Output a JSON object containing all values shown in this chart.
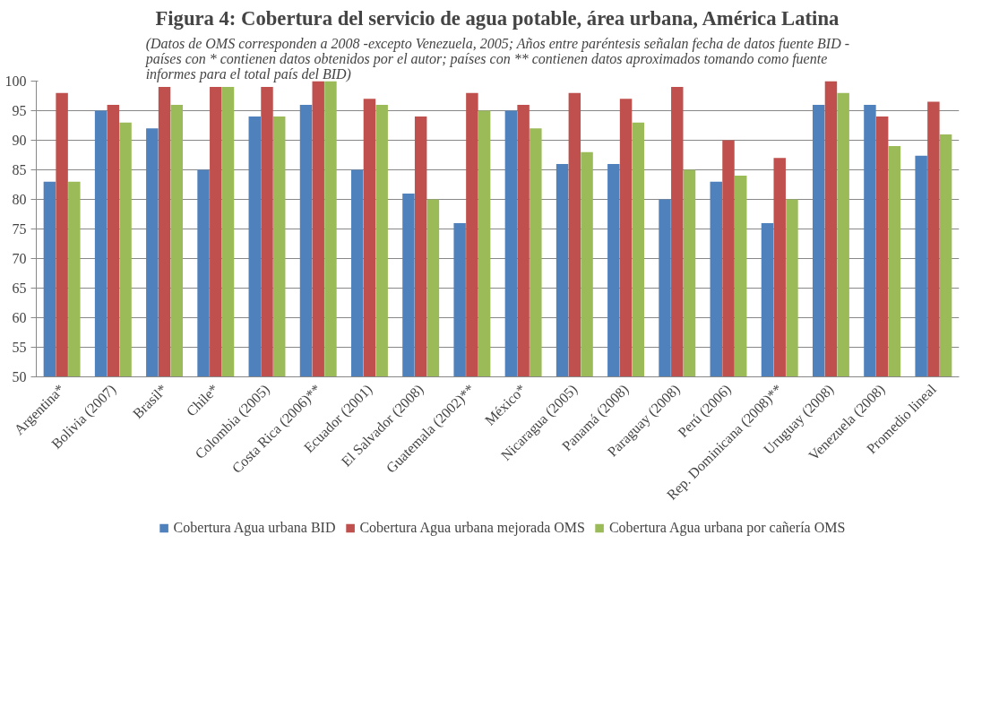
{
  "chart_data": {
    "type": "bar",
    "title": "Figura 4: Cobertura del servicio de agua potable, área urbana, América Latina",
    "subtitle": "(Datos de OMS corresponden a 2008 -excepto Venezuela, 2005; Años entre paréntesis señalan fecha de datos fuente BID - países con * contienen datos obtenidos por el autor; países con ** contienen datos aproximados tomando como fuente informes para el total país del BID)",
    "categories": [
      "Argentina*",
      "Bolivia (2007)",
      "Brasil*",
      "Chile*",
      "Colombia (2005)",
      "Costa Rica (2006)**",
      "Ecuador (2001)",
      "El Salvador (2008)",
      "Guatemala (2002)**",
      "México*",
      "Nicaragua (2005)",
      "Panamá (2008)",
      "Paraguay (2008)",
      "Perú (2006)",
      "Rep. Dominicana (2008)**",
      "Uruguay (2008)",
      "Venezuela (2008)",
      "Promedio lineal"
    ],
    "series": [
      {
        "name": "Cobertura Agua urbana BID",
        "color": "#4f81bd",
        "values": [
          83,
          95,
          92,
          85,
          94,
          96,
          85,
          81,
          76,
          95,
          86,
          86,
          80,
          83,
          76,
          96,
          96,
          87.4
        ]
      },
      {
        "name": "Cobertura Agua urbana mejorada OMS",
        "color": "#c0504d",
        "values": [
          98,
          96,
          99,
          99,
          99,
          100,
          97,
          94,
          98,
          96,
          98,
          97,
          99,
          90,
          87,
          100,
          94,
          96.5
        ]
      },
      {
        "name": "Cobertura Agua urbana por cañería OMS",
        "color": "#9bbb59",
        "values": [
          83,
          93,
          96,
          99,
          94,
          100,
          96,
          80,
          95,
          92,
          88,
          93,
          85,
          84,
          80,
          98,
          89,
          91
        ]
      }
    ],
    "ylim": [
      50,
      100
    ],
    "yticks": [
      50,
      55,
      60,
      65,
      70,
      75,
      80,
      85,
      90,
      95,
      100
    ],
    "grid": "y",
    "legend": "bottom"
  }
}
